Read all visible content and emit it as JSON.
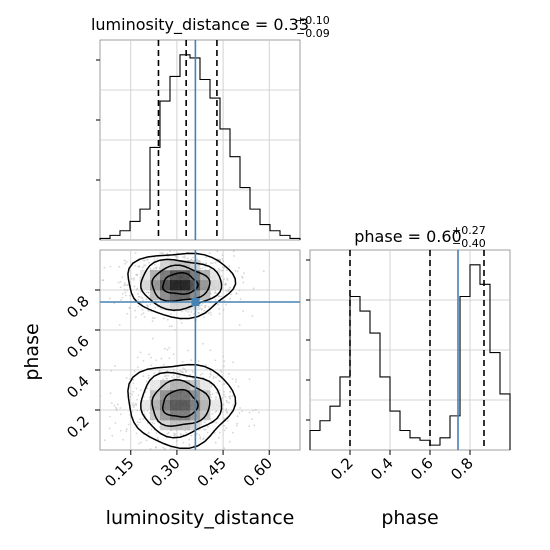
{
  "chart_data": {
    "type": "corner",
    "parameters": [
      "luminosity_distance",
      "phase"
    ],
    "panels": {
      "luminosity_distance_marginal": {
        "type": "histogram",
        "title_name": "luminosity_distance",
        "title_value": "0.33",
        "title_plus": "+0.10",
        "title_minus": "−0.09",
        "xlim": [
          0.05,
          0.7
        ],
        "bin_edges": [
          0.05,
          0.0825,
          0.115,
          0.1475,
          0.18,
          0.2125,
          0.245,
          0.2775,
          0.31,
          0.3425,
          0.375,
          0.4075,
          0.44,
          0.4725,
          0.505,
          0.5375,
          0.57,
          0.6025,
          0.635,
          0.6675,
          0.7
        ],
        "counts": [
          0.5,
          1.5,
          3,
          6,
          10,
          30,
          45,
          53,
          60,
          59,
          52,
          46,
          36,
          27,
          17,
          10,
          5,
          3,
          1.5,
          0.5
        ],
        "quantiles": [
          0.24,
          0.33,
          0.43
        ],
        "truth": 0.36
      },
      "phase_marginal": {
        "type": "histogram",
        "title_name": "phase",
        "title_value": "0.60",
        "title_plus": "+0.27",
        "title_minus": "−0.40",
        "xlim": [
          0.0,
          1.0
        ],
        "bin_edges": [
          0.0,
          0.05,
          0.1,
          0.15,
          0.2,
          0.25,
          0.3,
          0.35,
          0.4,
          0.45,
          0.5,
          0.55,
          0.6,
          0.65,
          0.7,
          0.75,
          0.8,
          0.85,
          0.9,
          0.95,
          1.0
        ],
        "counts": [
          8,
          12,
          18,
          30,
          63,
          57,
          48,
          30,
          16,
          8,
          5,
          4,
          2,
          5,
          14,
          63,
          76,
          68,
          40,
          23
        ],
        "quantiles": [
          0.2,
          0.6,
          0.87
        ],
        "truth": 0.74
      },
      "joint": {
        "type": "density_contour",
        "x_param": "luminosity_distance",
        "y_param": "phase",
        "xlim": [
          0.05,
          0.7
        ],
        "ylim": [
          0.0,
          1.0
        ],
        "modes": [
          {
            "x": 0.31,
            "y": 0.83,
            "sx": 0.075,
            "sy": 0.07,
            "weight": 1.0
          },
          {
            "x": 0.31,
            "y": 0.23,
            "sx": 0.075,
            "sy": 0.09,
            "weight": 0.8
          }
        ],
        "truth": {
          "x": 0.36,
          "y": 0.74
        }
      }
    },
    "x_axes": [
      {
        "label": "luminosity_distance",
        "ticks": [
          "0.15",
          "0.30",
          "0.45",
          "0.60"
        ],
        "tick_values": [
          0.15,
          0.3,
          0.45,
          0.6
        ]
      },
      {
        "label": "phase",
        "ticks": [
          "0.2",
          "0.4",
          "0.6",
          "0.8"
        ],
        "tick_values": [
          0.2,
          0.4,
          0.6,
          0.8
        ]
      }
    ],
    "y_axes": [
      {
        "label": "phase",
        "ticks": [
          "0.2",
          "0.4",
          "0.6",
          "0.8"
        ],
        "tick_values": [
          0.2,
          0.4,
          0.6,
          0.8
        ]
      }
    ],
    "grid": true,
    "colors": {
      "truth": "#4682b4",
      "hist": "#000000",
      "quantile": "#000000",
      "scatter": "#b4b4b4",
      "grid": "#c8c8c8"
    }
  }
}
